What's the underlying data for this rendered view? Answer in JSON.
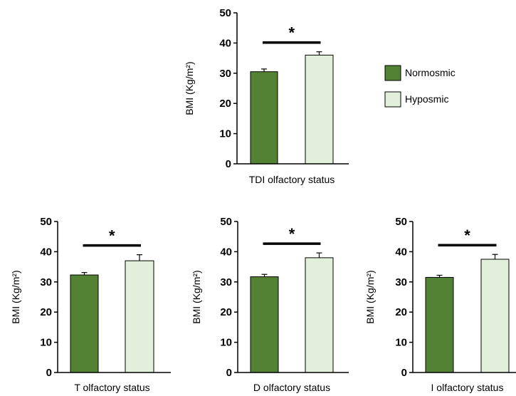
{
  "legend": {
    "items": [
      {
        "label": "Normosmic",
        "color": "#548235"
      },
      {
        "label": "Hyposmic",
        "color": "#e2efda"
      }
    ]
  },
  "chart_data": [
    {
      "type": "bar",
      "xlabel": "TDI olfactory status",
      "ylabel": "BMI (Kg/m²)",
      "ylim": [
        0,
        50
      ],
      "yticks": [
        0,
        10,
        20,
        30,
        40,
        50
      ],
      "categories": [
        "Normosmic",
        "Hyposmic"
      ],
      "values": [
        30.5,
        36.0
      ],
      "errors": [
        0.9,
        1.1
      ],
      "significance": "*",
      "grid": false
    },
    {
      "type": "bar",
      "xlabel": "T olfactory status",
      "ylabel": "BMI (Kg/m²)",
      "ylim": [
        0,
        50
      ],
      "yticks": [
        0,
        10,
        20,
        30,
        40,
        50
      ],
      "categories": [
        "Normosmic",
        "Hyposmic"
      ],
      "values": [
        32.3,
        37.0
      ],
      "errors": [
        0.8,
        2.0
      ],
      "significance": "*",
      "grid": false
    },
    {
      "type": "bar",
      "xlabel": "D olfactory status",
      "ylabel": "BMI (Kg/m²)",
      "ylim": [
        0,
        50
      ],
      "yticks": [
        0,
        10,
        20,
        30,
        40,
        50
      ],
      "categories": [
        "Normosmic",
        "Hyposmic"
      ],
      "values": [
        31.7,
        38.0
      ],
      "errors": [
        0.8,
        1.6
      ],
      "significance": "*",
      "grid": false
    },
    {
      "type": "bar",
      "xlabel": "I olfactory status",
      "ylabel": "BMI (Kg/m²)",
      "ylim": [
        0,
        50
      ],
      "yticks": [
        0,
        10,
        20,
        30,
        40,
        50
      ],
      "categories": [
        "Normosmic",
        "Hyposmic"
      ],
      "values": [
        31.5,
        37.5
      ],
      "errors": [
        0.7,
        1.6
      ],
      "significance": "*",
      "grid": false
    }
  ]
}
